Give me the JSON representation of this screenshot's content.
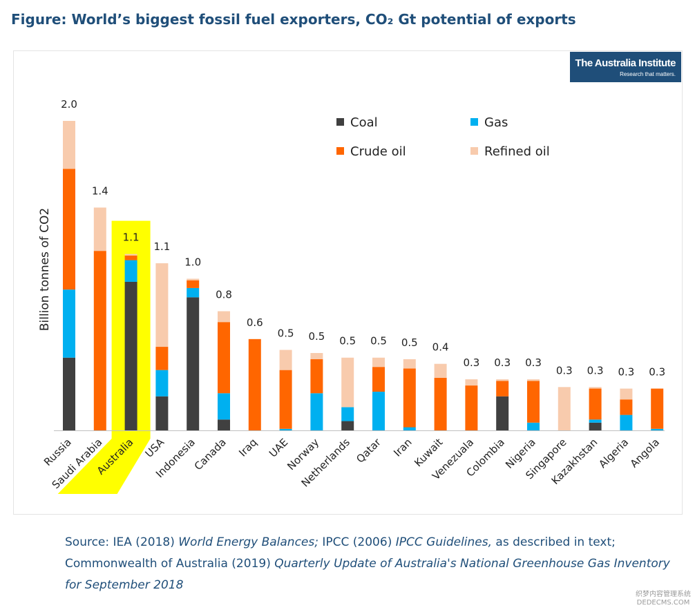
{
  "figure_title": "Figure: World’s biggest fossil fuel exporters, CO₂ Gt potential of exports",
  "logo": {
    "line1": "The Australia Institute",
    "line2": "Research that matters."
  },
  "source": {
    "p1": "Source: IEA (2018) ",
    "i1": "World Energy Balances;",
    "p2": " IPCC (2006) ",
    "i2": "IPCC Guidelines,",
    "p3": " as described in text; Commonwealth of Australia (2019) ",
    "i3": "Quarterly Update of Australia's National Greenhouse Gas Inventory for September 2018"
  },
  "watermark": {
    "line1": "织梦内容管理系统",
    "line2": "DEDECMS.COM"
  },
  "chart_data": {
    "type": "bar",
    "stacked": true,
    "ylabel": "Billion tonnes of CO2",
    "ylim": [
      0,
      2.2
    ],
    "grid": false,
    "legend_position": "top-center",
    "highlight": "Australia",
    "highlight_color": "#ffff00",
    "categories": [
      "Russia",
      "Saudi Arabia",
      "Australia",
      "USA",
      "Indonesia",
      "Canada",
      "Iraq",
      "UAE",
      "Norway",
      "Netherlands",
      "Qatar",
      "Iran",
      "Kuwait",
      "Venezuala",
      "Colombia",
      "Nigeria",
      "Singapore",
      "Kazakhstan",
      "Algeria",
      "Angola"
    ],
    "total_labels": [
      "2.0",
      "1.4",
      "1.1",
      "1.1",
      "1.0",
      "0.8",
      "0.6",
      "0.5",
      "0.5",
      "0.5",
      "0.5",
      "0.5",
      "0.4",
      "0.3",
      "0.3",
      "0.3",
      "0.3",
      "0.3",
      "0.3",
      "0.3"
    ],
    "series": [
      {
        "name": "Coal",
        "color": "#404040",
        "values": [
          0.47,
          0.0,
          0.96,
          0.22,
          0.86,
          0.07,
          0.0,
          0.0,
          0.0,
          0.06,
          0.0,
          0.0,
          0.0,
          0.0,
          0.22,
          0.0,
          0.0,
          0.05,
          0.0,
          0.0
        ]
      },
      {
        "name": "Gas",
        "color": "#00b0f0",
        "values": [
          0.44,
          0.0,
          0.14,
          0.17,
          0.06,
          0.17,
          0.0,
          0.01,
          0.24,
          0.09,
          0.25,
          0.02,
          0.0,
          0.0,
          0.0,
          0.05,
          0.0,
          0.02,
          0.1,
          0.01
        ]
      },
      {
        "name": "Crude oil",
        "color": "#ff6600",
        "values": [
          0.78,
          1.16,
          0.03,
          0.15,
          0.05,
          0.46,
          0.59,
          0.38,
          0.22,
          0.0,
          0.16,
          0.38,
          0.34,
          0.29,
          0.1,
          0.27,
          0.0,
          0.2,
          0.1,
          0.26
        ]
      },
      {
        "name": "Refined oil",
        "color": "#f8cbad",
        "values": [
          0.31,
          0.28,
          0.01,
          0.54,
          0.01,
          0.07,
          0.0,
          0.13,
          0.04,
          0.32,
          0.06,
          0.06,
          0.09,
          0.04,
          0.01,
          0.01,
          0.28,
          0.01,
          0.07,
          0.0
        ]
      }
    ]
  }
}
